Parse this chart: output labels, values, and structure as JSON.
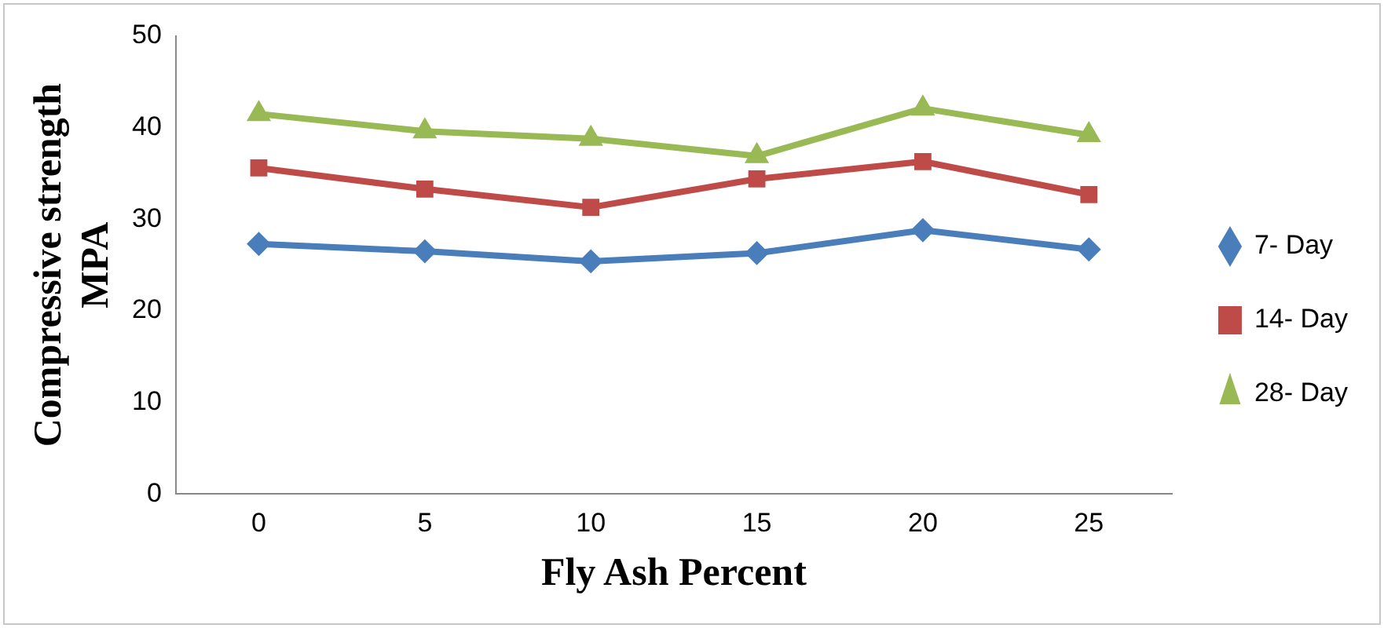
{
  "chart_data": {
    "type": "line",
    "xlabel": "Fly Ash Percent",
    "ylabel": "Compressive strength MPA",
    "categories": [
      "0",
      "5",
      "10",
      "15",
      "20",
      "25"
    ],
    "series": [
      {
        "name": "7- Day",
        "color": "#4a7ebb",
        "marker": "diamond",
        "values": [
          27.3,
          26.5,
          25.4,
          26.3,
          28.8,
          26.7
        ]
      },
      {
        "name": "14- Day",
        "color": "#be4b48",
        "marker": "square",
        "values": [
          35.6,
          33.3,
          31.3,
          34.4,
          36.3,
          32.7
        ]
      },
      {
        "name": "28- Day",
        "color": "#98b954",
        "marker": "triangle",
        "values": [
          41.5,
          39.6,
          38.8,
          36.9,
          42.1,
          39.2
        ]
      }
    ],
    "ylim": [
      0,
      50
    ],
    "yticks": [
      0,
      10,
      20,
      30,
      40,
      50
    ],
    "grid": false,
    "legend": "right",
    "line_style": "solid"
  }
}
